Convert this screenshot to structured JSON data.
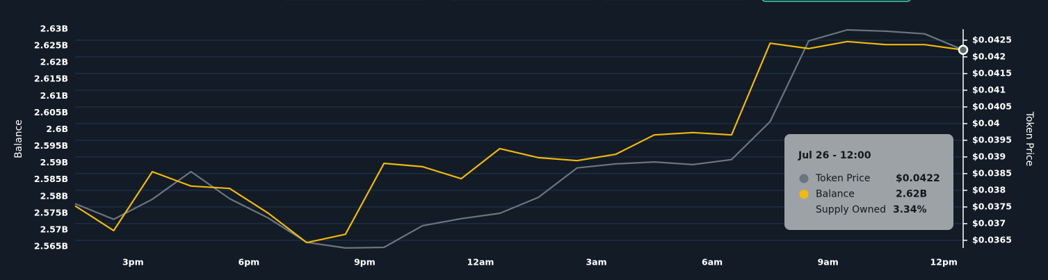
{
  "chart_data": {
    "type": "line",
    "y_label": "Balance",
    "y2_label": "Token Price",
    "x": [
      0,
      1,
      2,
      3,
      4,
      5,
      6,
      7,
      8,
      9,
      10,
      11,
      12,
      13,
      14,
      15,
      16,
      17,
      18,
      19,
      20,
      21,
      22,
      23
    ],
    "xlim": [
      0,
      23
    ],
    "xticks": [
      {
        "value": 1.5,
        "label": "3pm"
      },
      {
        "value": 4.5,
        "label": "6pm"
      },
      {
        "value": 7.5,
        "label": "9pm"
      },
      {
        "value": 10.5,
        "label": "12am"
      },
      {
        "value": 13.5,
        "label": "3am"
      },
      {
        "value": 16.5,
        "label": "6am"
      },
      {
        "value": 19.5,
        "label": "9am"
      },
      {
        "value": 22.5,
        "label": "12pm"
      }
    ],
    "ylim": [
      2565000000,
      2630000000
    ],
    "yticks": [
      {
        "value": 2630000000,
        "label": "2.63B"
      },
      {
        "value": 2625000000,
        "label": "2.625B"
      },
      {
        "value": 2620000000,
        "label": "2.62B"
      },
      {
        "value": 2615000000,
        "label": "2.615B"
      },
      {
        "value": 2610000000,
        "label": "2.61B"
      },
      {
        "value": 2605000000,
        "label": "2.605B"
      },
      {
        "value": 2600000000,
        "label": "2.6B"
      },
      {
        "value": 2595000000,
        "label": "2.595B"
      },
      {
        "value": 2590000000,
        "label": "2.59B"
      },
      {
        "value": 2585000000,
        "label": "2.585B"
      },
      {
        "value": 2580000000,
        "label": "2.58B"
      },
      {
        "value": 2575000000,
        "label": "2.575B"
      },
      {
        "value": 2570000000,
        "label": "2.57B"
      },
      {
        "value": 2565000000,
        "label": "2.565B"
      }
    ],
    "y2lim": [
      0.03631,
      0.04283
    ],
    "y2ticks": [
      {
        "value": 0.0425,
        "label": "$0.0425"
      },
      {
        "value": 0.042,
        "label": "$0.042"
      },
      {
        "value": 0.0415,
        "label": "$0.0415"
      },
      {
        "value": 0.041,
        "label": "$0.041"
      },
      {
        "value": 0.0405,
        "label": "$0.0405"
      },
      {
        "value": 0.04,
        "label": "$0.04"
      },
      {
        "value": 0.0395,
        "label": "$0.0395"
      },
      {
        "value": 0.039,
        "label": "$0.039"
      },
      {
        "value": 0.0385,
        "label": "$0.0385"
      },
      {
        "value": 0.038,
        "label": "$0.038"
      },
      {
        "value": 0.0375,
        "label": "$0.0375"
      },
      {
        "value": 0.037,
        "label": "$0.037"
      },
      {
        "value": 0.0365,
        "label": "$0.0365"
      }
    ],
    "grid": true,
    "series": [
      {
        "name": "Token Price",
        "color": "#6b7580",
        "axis": "y2",
        "values": [
          0.0376,
          0.03713,
          0.03773,
          0.03856,
          0.03775,
          0.03717,
          0.03644,
          0.03627,
          0.03629,
          0.03694,
          0.03715,
          0.03731,
          0.03779,
          0.03867,
          0.03879,
          0.03885,
          0.03877,
          0.03892,
          0.04006,
          0.04248,
          0.04281,
          0.04277,
          0.04269,
          0.04221
        ]
      },
      {
        "name": "Balance",
        "color": "#f0b90b",
        "values": [
          2577200000,
          2569800000,
          2587400000,
          2583100000,
          2582400000,
          2575000000,
          2566200000,
          2568700000,
          2589900000,
          2588900000,
          2585300000,
          2594300000,
          2591600000,
          2590700000,
          2592600000,
          2598400000,
          2599100000,
          2598400000,
          2625800000,
          2624200000,
          2626300000,
          2625400000,
          2625400000,
          2623800000
        ]
      }
    ],
    "tooltip": {
      "title": "Jul 26 - 12:00",
      "rows": [
        {
          "name": "Token Price",
          "value": "$0.0422"
        },
        {
          "name": "Balance",
          "value": "2.62B"
        },
        {
          "name": "Supply Owned",
          "value": "3.34%"
        }
      ]
    }
  }
}
